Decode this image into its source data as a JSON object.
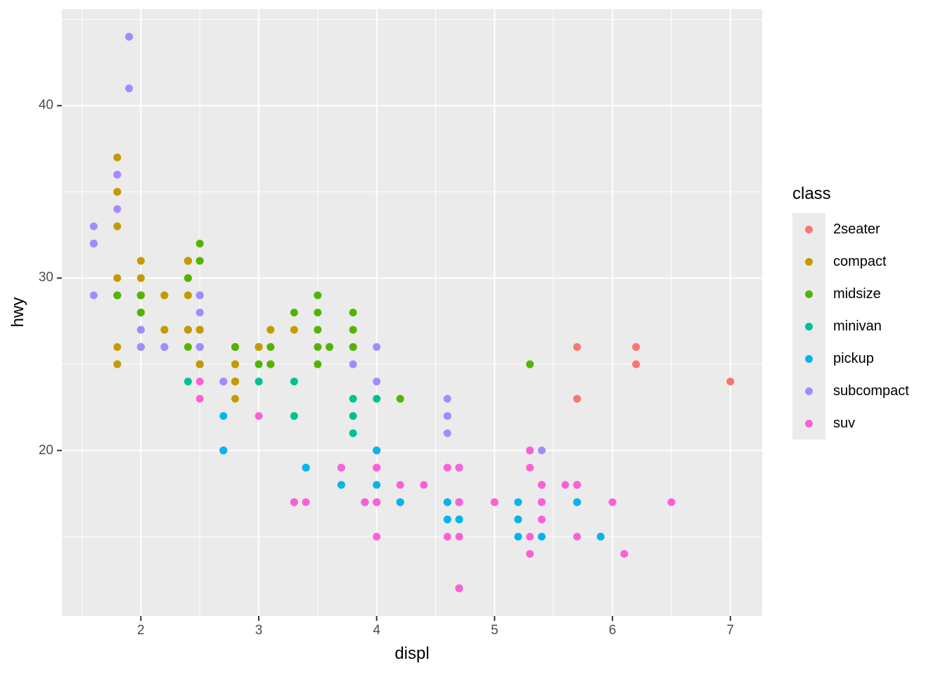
{
  "figure": {
    "background": "#FFFFFF",
    "panel_bg": "#EBEBEB",
    "grid_color": "#FFFFFF",
    "tick_mark_color": "#333333",
    "tick_label_color": "#4D4D4D"
  },
  "chart_data": {
    "type": "scatter",
    "title": "",
    "xlabel": "displ",
    "ylabel": "hwy",
    "xlim": [
      1.33,
      7.27
    ],
    "ylim": [
      10.4,
      45.6
    ],
    "x_ticks": [
      2,
      3,
      4,
      5,
      6,
      7
    ],
    "y_ticks": [
      20,
      30,
      40
    ],
    "x_minor_ticks": [
      1.5,
      2.5,
      3.5,
      4.5,
      5.5,
      6.5
    ],
    "y_minor_ticks": [
      15,
      25,
      35,
      45
    ],
    "grid": true,
    "legend_position": "right",
    "legend_title": "class",
    "classes": [
      {
        "name": "2seater",
        "color": "#F8766D"
      },
      {
        "name": "compact",
        "color": "#C49A00"
      },
      {
        "name": "midsize",
        "color": "#53B400"
      },
      {
        "name": "minivan",
        "color": "#00C094"
      },
      {
        "name": "pickup",
        "color": "#00B6EB"
      },
      {
        "name": "subcompact",
        "color": "#A58AFF"
      },
      {
        "name": "suv",
        "color": "#FB61D7"
      }
    ],
    "points_format": [
      "displ",
      "hwy",
      "class_index"
    ],
    "points": [
      [
        1.8,
        29,
        1
      ],
      [
        1.8,
        29,
        1
      ],
      [
        2.0,
        31,
        1
      ],
      [
        2.0,
        30,
        1
      ],
      [
        2.8,
        26,
        1
      ],
      [
        2.8,
        26,
        1
      ],
      [
        3.1,
        27,
        1
      ],
      [
        1.8,
        26,
        1
      ],
      [
        1.8,
        25,
        1
      ],
      [
        2.0,
        28,
        1
      ],
      [
        2.0,
        27,
        1
      ],
      [
        2.8,
        25,
        1
      ],
      [
        2.8,
        25,
        1
      ],
      [
        3.1,
        25,
        1
      ],
      [
        3.1,
        25,
        1
      ],
      [
        2.8,
        24,
        2
      ],
      [
        3.1,
        25,
        2
      ],
      [
        4.2,
        23,
        2
      ],
      [
        5.3,
        20,
        6
      ],
      [
        5.3,
        15,
        6
      ],
      [
        5.3,
        20,
        6
      ],
      [
        5.7,
        17,
        6
      ],
      [
        6.0,
        17,
        6
      ],
      [
        5.7,
        26,
        0
      ],
      [
        5.7,
        23,
        0
      ],
      [
        6.2,
        26,
        0
      ],
      [
        6.2,
        25,
        0
      ],
      [
        7.0,
        24,
        0
      ],
      [
        5.3,
        14,
        6
      ],
      [
        5.3,
        19,
        6
      ],
      [
        5.7,
        15,
        6
      ],
      [
        6.5,
        17,
        6
      ],
      [
        2.4,
        27,
        2
      ],
      [
        2.4,
        30,
        2
      ],
      [
        3.1,
        26,
        2
      ],
      [
        3.5,
        29,
        2
      ],
      [
        3.6,
        26,
        2
      ],
      [
        2.4,
        24,
        3
      ],
      [
        3.0,
        24,
        3
      ],
      [
        3.3,
        22,
        3
      ],
      [
        3.3,
        24,
        3
      ],
      [
        3.3,
        17,
        3
      ],
      [
        3.8,
        22,
        3
      ],
      [
        3.8,
        21,
        3
      ],
      [
        3.8,
        23,
        3
      ],
      [
        4.0,
        23,
        3
      ],
      [
        3.7,
        19,
        4
      ],
      [
        3.7,
        18,
        4
      ],
      [
        3.9,
        17,
        4
      ],
      [
        3.9,
        17,
        4
      ],
      [
        4.7,
        19,
        4
      ],
      [
        4.7,
        19,
        4
      ],
      [
        4.7,
        12,
        4
      ],
      [
        3.9,
        17,
        6
      ],
      [
        4.7,
        17,
        6
      ],
      [
        4.7,
        12,
        6
      ],
      [
        4.7,
        17,
        6
      ],
      [
        5.2,
        16,
        6
      ],
      [
        5.7,
        18,
        6
      ],
      [
        5.9,
        15,
        6
      ],
      [
        4.7,
        16,
        4
      ],
      [
        4.7,
        12,
        4
      ],
      [
        4.7,
        17,
        4
      ],
      [
        4.7,
        17,
        4
      ],
      [
        4.7,
        16,
        4
      ],
      [
        5.2,
        15,
        4
      ],
      [
        5.2,
        16,
        4
      ],
      [
        5.2,
        17,
        4
      ],
      [
        5.7,
        17,
        4
      ],
      [
        5.9,
        15,
        4
      ],
      [
        4.6,
        17,
        6
      ],
      [
        5.4,
        17,
        6
      ],
      [
        5.4,
        18,
        6
      ],
      [
        4.0,
        17,
        6
      ],
      [
        4.0,
        19,
        6
      ],
      [
        4.0,
        17,
        6
      ],
      [
        4.0,
        19,
        6
      ],
      [
        4.6,
        19,
        6
      ],
      [
        5.0,
        17,
        6
      ],
      [
        4.2,
        17,
        4
      ],
      [
        4.2,
        17,
        4
      ],
      [
        4.6,
        16,
        4
      ],
      [
        4.6,
        16,
        4
      ],
      [
        4.6,
        17,
        4
      ],
      [
        5.4,
        15,
        4
      ],
      [
        5.4,
        17,
        4
      ],
      [
        3.8,
        26,
        5
      ],
      [
        3.8,
        25,
        5
      ],
      [
        4.0,
        26,
        5
      ],
      [
        4.0,
        24,
        5
      ],
      [
        4.6,
        21,
        5
      ],
      [
        4.6,
        22,
        5
      ],
      [
        4.6,
        23,
        5
      ],
      [
        4.6,
        22,
        5
      ],
      [
        5.4,
        20,
        5
      ],
      [
        1.6,
        33,
        5
      ],
      [
        1.6,
        32,
        5
      ],
      [
        1.6,
        32,
        5
      ],
      [
        1.6,
        29,
        5
      ],
      [
        1.6,
        32,
        5
      ],
      [
        1.8,
        34,
        5
      ],
      [
        1.8,
        36,
        5
      ],
      [
        1.8,
        36,
        5
      ],
      [
        2.0,
        29,
        5
      ],
      [
        2.4,
        26,
        2
      ],
      [
        2.4,
        27,
        2
      ],
      [
        2.4,
        30,
        2
      ],
      [
        2.4,
        31,
        2
      ],
      [
        2.5,
        26,
        2
      ],
      [
        2.5,
        26,
        2
      ],
      [
        3.3,
        28,
        2
      ],
      [
        2.0,
        26,
        5
      ],
      [
        2.0,
        29,
        5
      ],
      [
        2.0,
        28,
        5
      ],
      [
        2.0,
        27,
        5
      ],
      [
        2.7,
        24,
        5
      ],
      [
        2.7,
        24,
        5
      ],
      [
        3.0,
        22,
        6
      ],
      [
        3.7,
        19,
        6
      ],
      [
        4.0,
        20,
        6
      ],
      [
        4.7,
        17,
        6
      ],
      [
        4.7,
        12,
        6
      ],
      [
        4.7,
        19,
        6
      ],
      [
        5.7,
        18,
        6
      ],
      [
        6.1,
        14,
        6
      ],
      [
        4.0,
        15,
        6
      ],
      [
        4.2,
        18,
        6
      ],
      [
        4.4,
        18,
        6
      ],
      [
        4.6,
        15,
        6
      ],
      [
        5.4,
        17,
        6
      ],
      [
        5.4,
        16,
        6
      ],
      [
        5.4,
        18,
        6
      ],
      [
        4.0,
        17,
        6
      ],
      [
        4.0,
        19,
        6
      ],
      [
        4.6,
        19,
        6
      ],
      [
        5.0,
        17,
        6
      ],
      [
        2.4,
        29,
        1
      ],
      [
        2.4,
        27,
        1
      ],
      [
        2.5,
        31,
        2
      ],
      [
        2.5,
        32,
        2
      ],
      [
        3.5,
        27,
        2
      ],
      [
        3.5,
        26,
        2
      ],
      [
        3.0,
        26,
        2
      ],
      [
        3.0,
        25,
        2
      ],
      [
        3.5,
        25,
        2
      ],
      [
        3.3,
        17,
        6
      ],
      [
        3.3,
        17,
        6
      ],
      [
        4.0,
        20,
        6
      ],
      [
        5.6,
        18,
        6
      ],
      [
        3.1,
        26,
        2
      ],
      [
        3.8,
        26,
        2
      ],
      [
        3.8,
        27,
        2
      ],
      [
        3.8,
        28,
        2
      ],
      [
        5.3,
        25,
        2
      ],
      [
        2.5,
        25,
        6
      ],
      [
        2.5,
        24,
        6
      ],
      [
        2.5,
        27,
        6
      ],
      [
        2.5,
        25,
        6
      ],
      [
        2.5,
        26,
        6
      ],
      [
        2.5,
        23,
        6
      ],
      [
        2.2,
        26,
        5
      ],
      [
        2.2,
        26,
        5
      ],
      [
        2.5,
        26,
        5
      ],
      [
        2.5,
        26,
        5
      ],
      [
        2.5,
        25,
        1
      ],
      [
        2.5,
        27,
        1
      ],
      [
        2.5,
        25,
        1
      ],
      [
        2.5,
        27,
        1
      ],
      [
        2.7,
        20,
        6
      ],
      [
        2.7,
        20,
        6
      ],
      [
        3.4,
        19,
        6
      ],
      [
        3.4,
        17,
        6
      ],
      [
        4.0,
        20,
        6
      ],
      [
        4.7,
        17,
        6
      ],
      [
        2.2,
        29,
        2
      ],
      [
        2.2,
        27,
        2
      ],
      [
        2.4,
        31,
        2
      ],
      [
        2.4,
        31,
        2
      ],
      [
        3.0,
        26,
        2
      ],
      [
        3.0,
        26,
        2
      ],
      [
        3.5,
        28,
        2
      ],
      [
        2.2,
        27,
        1
      ],
      [
        2.2,
        29,
        1
      ],
      [
        2.4,
        31,
        1
      ],
      [
        2.4,
        31,
        1
      ],
      [
        3.0,
        26,
        1
      ],
      [
        3.3,
        27,
        1
      ],
      [
        1.8,
        30,
        1
      ],
      [
        1.8,
        33,
        1
      ],
      [
        1.8,
        35,
        1
      ],
      [
        1.8,
        37,
        1
      ],
      [
        1.8,
        35,
        1
      ],
      [
        4.7,
        15,
        6
      ],
      [
        5.7,
        18,
        6
      ],
      [
        2.7,
        20,
        4
      ],
      [
        2.7,
        20,
        4
      ],
      [
        2.7,
        22,
        4
      ],
      [
        3.4,
        19,
        4
      ],
      [
        3.4,
        19,
        4
      ],
      [
        4.0,
        20,
        4
      ],
      [
        4.0,
        18,
        4
      ],
      [
        2.0,
        29,
        1
      ],
      [
        2.0,
        26,
        1
      ],
      [
        2.0,
        29,
        1
      ],
      [
        2.0,
        29,
        1
      ],
      [
        2.8,
        24,
        1
      ],
      [
        1.9,
        44,
        1
      ],
      [
        2.0,
        29,
        1
      ],
      [
        2.0,
        26,
        1
      ],
      [
        2.0,
        29,
        1
      ],
      [
        2.0,
        29,
        1
      ],
      [
        2.5,
        29,
        1
      ],
      [
        2.5,
        29,
        1
      ],
      [
        2.8,
        23,
        1
      ],
      [
        2.8,
        24,
        1
      ],
      [
        1.9,
        44,
        5
      ],
      [
        1.9,
        41,
        5
      ],
      [
        2.0,
        29,
        5
      ],
      [
        2.0,
        26,
        5
      ],
      [
        2.5,
        28,
        5
      ],
      [
        2.5,
        29,
        5
      ],
      [
        1.8,
        29,
        2
      ],
      [
        1.8,
        29,
        2
      ],
      [
        2.0,
        28,
        2
      ],
      [
        2.0,
        29,
        2
      ],
      [
        2.8,
        26,
        2
      ],
      [
        2.8,
        26,
        2
      ],
      [
        3.6,
        26,
        2
      ]
    ]
  },
  "legend": {
    "key_bg": "#EBEBEB"
  }
}
